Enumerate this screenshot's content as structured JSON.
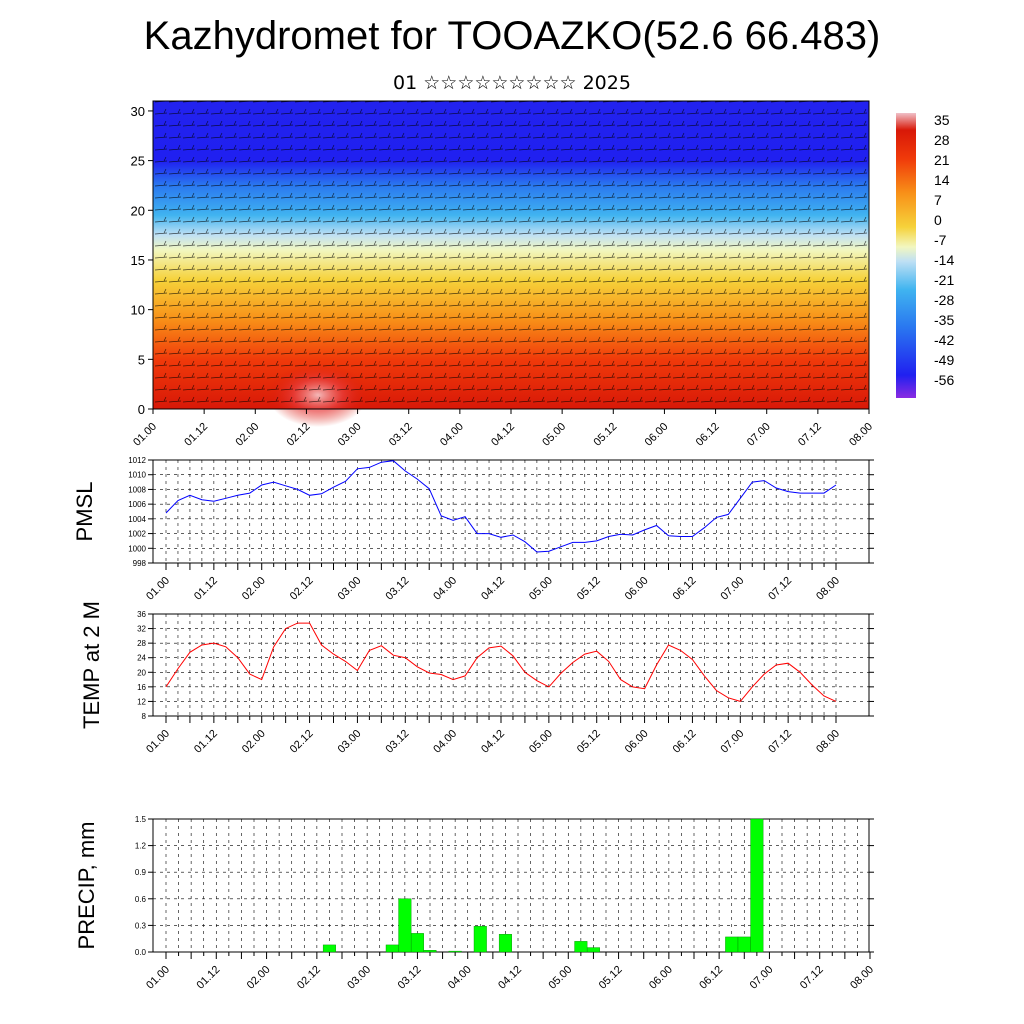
{
  "header": {
    "title": "Kazhydromet for TOOAZKO(52.6 66.483)",
    "subtitle": "01 ☆☆☆☆☆☆☆☆☆ 2025"
  },
  "chart_data": [
    {
      "type": "heatmap",
      "name": "cross-section",
      "x_ticks": [
        "01.00",
        "01.12",
        "02.00",
        "02.12",
        "03.00",
        "03.12",
        "04.00",
        "04.12",
        "05.00",
        "05.12",
        "06.00",
        "06.12",
        "07.00",
        "07.12",
        "08.00"
      ],
      "y_ticks": [
        0,
        5,
        10,
        15,
        20,
        25,
        30
      ],
      "ylim": [
        0,
        31
      ],
      "colorbar_labels": [
        35,
        28,
        21,
        14,
        7,
        0,
        -7,
        -14,
        -21,
        -28,
        -35,
        -42,
        -49,
        -56
      ],
      "colors": {
        "warm": "#e00000",
        "mid": "#f6d23a",
        "cool": "#40b4f0",
        "cold": "#2020f0",
        "top": "#f0c0c8",
        "bottom": "#8a2be2"
      },
      "band_heights": [
        [
          0,
          "#d81808"
        ],
        [
          5,
          "#f03a0a"
        ],
        [
          9,
          "#f89018"
        ],
        [
          13,
          "#f6d23a"
        ],
        [
          16,
          "#f2f7c0"
        ],
        [
          17.5,
          "#bfe0f4"
        ],
        [
          19.5,
          "#40b4f0"
        ],
        [
          22.5,
          "#2a78f0"
        ],
        [
          25,
          "#2020f0"
        ],
        [
          31,
          "#2222ee"
        ]
      ],
      "grid": false
    },
    {
      "type": "line",
      "ylabel": "PMSL",
      "color": "#0000ff",
      "ylim": [
        998,
        1012
      ],
      "y_ticks": [
        998,
        1000,
        1002,
        1004,
        1006,
        1008,
        1010,
        1012
      ],
      "x_ticks": [
        "01.00",
        "01.12",
        "02.00",
        "02.12",
        "03.00",
        "03.12",
        "04.00",
        "04.12",
        "05.00",
        "05.12",
        "06.00",
        "06.12",
        "07.00",
        "07.12",
        "08.00"
      ],
      "values": [
        1004.8,
        1006.5,
        1007.2,
        1006.6,
        1006.4,
        1006.8,
        1007.2,
        1007.5,
        1008.6,
        1009.0,
        1008.5,
        1008.0,
        1007.2,
        1007.4,
        1008.3,
        1009.1,
        1010.8,
        1011.0,
        1011.7,
        1011.9,
        1010.5,
        1009.4,
        1008.1,
        1004.4,
        1003.8,
        1004.3,
        1002.0,
        1002.0,
        1001.5,
        1001.8,
        1000.9,
        999.5,
        999.6,
        1000.2,
        1000.8,
        1000.8,
        1001.0,
        1001.6,
        1001.9,
        1001.8,
        1002.5,
        1003.1,
        1001.7,
        1001.6,
        1001.6,
        1002.8,
        1004.2,
        1004.6,
        1006.8,
        1009.0,
        1009.2,
        1008.2,
        1007.7,
        1007.5,
        1007.5,
        1007.5,
        1008.6
      ],
      "grid": true
    },
    {
      "type": "line",
      "ylabel": "TEMP at 2 M",
      "color": "#ff0000",
      "ylim": [
        8,
        36
      ],
      "y_ticks": [
        8,
        12,
        16,
        20,
        24,
        28,
        32,
        36
      ],
      "x_ticks": [
        "01.00",
        "01.12",
        "02.00",
        "02.12",
        "03.00",
        "03.12",
        "04.00",
        "04.12",
        "05.00",
        "05.12",
        "06.00",
        "06.12",
        "07.00",
        "07.12",
        "08.00"
      ],
      "values": [
        16,
        21,
        25.5,
        27.5,
        28,
        27,
        24,
        19.5,
        18,
        27,
        32,
        33.5,
        33.5,
        27.5,
        25,
        23,
        20.5,
        26,
        27.3,
        24.7,
        24,
        21.5,
        19.8,
        19.4,
        18,
        19,
        24,
        26.7,
        27.2,
        24.5,
        20,
        17.7,
        16,
        19.7,
        22.7,
        25,
        25.8,
        23,
        18,
        16,
        15.5,
        22,
        27.5,
        26,
        23.5,
        19,
        15,
        13,
        12,
        16,
        19.5,
        22,
        22.5,
        20,
        16.5,
        13.5,
        12
      ],
      "grid": true
    },
    {
      "type": "bar",
      "ylabel": "PRECIP, mm",
      "color": "#00ff00",
      "ylim": [
        0,
        1.5
      ],
      "y_ticks": [
        "0.0",
        "0.3",
        "0.6",
        "0.9",
        "1.2",
        "1.5"
      ],
      "x_ticks": [
        "01.00",
        "01.12",
        "02.00",
        "02.12",
        "03.00",
        "03.12",
        "04.00",
        "04.12",
        "05.00",
        "05.12",
        "06.00",
        "06.12",
        "07.00",
        "07.12",
        "08.00"
      ],
      "values": [
        0,
        0,
        0,
        0,
        0,
        0,
        0,
        0,
        0,
        0,
        0,
        0,
        0,
        0.08,
        0,
        0,
        0,
        0,
        0.08,
        0.6,
        0.21,
        0.02,
        0,
        0.01,
        0,
        0.29,
        0,
        0.2,
        0,
        0,
        0,
        0,
        0,
        0.12,
        0.05,
        0,
        0,
        0,
        0,
        0,
        0,
        0,
        0,
        0,
        0,
        0.17,
        0.17,
        1.5,
        0,
        0,
        0,
        0,
        0,
        0,
        0,
        0
      ],
      "grid": true
    }
  ]
}
